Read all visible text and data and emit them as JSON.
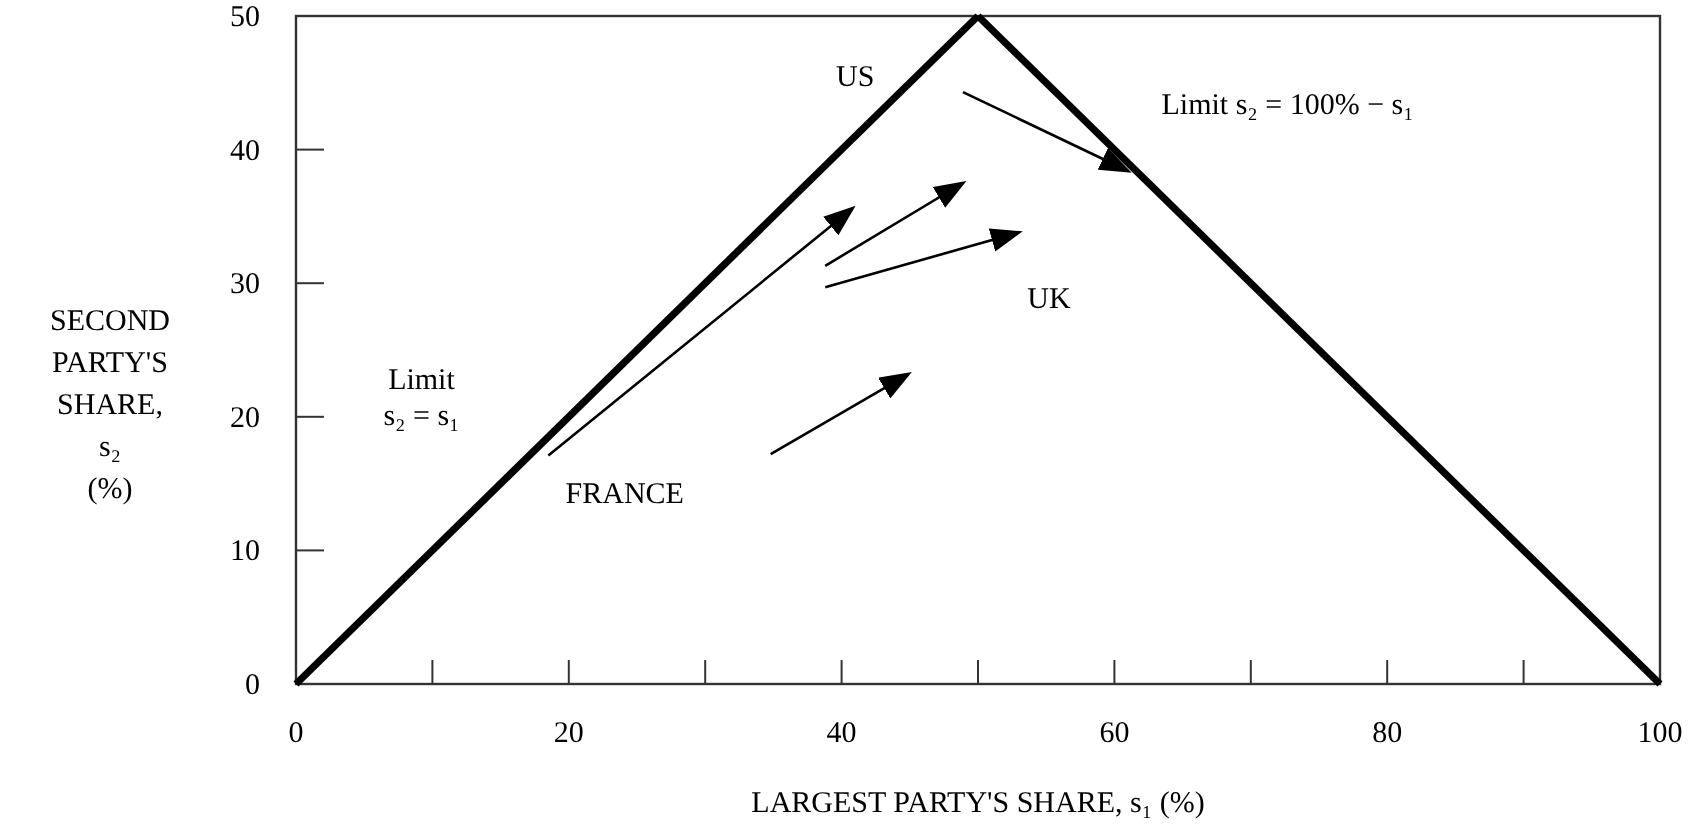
{
  "chart_data": {
    "type": "line",
    "xlabel": "LARGEST PARTY'S SHARE,  s₁ (%)",
    "ylabel": "SECOND\nPARTY'S\nSHARE,\ns₂\n(%)",
    "xlim": [
      0,
      100
    ],
    "ylim": [
      0,
      50
    ],
    "xticks": [
      0,
      {
        "value": 10,
        "label": null
      },
      20,
      {
        "value": 30,
        "label": null
      },
      40,
      {
        "value": 50,
        "label": null
      },
      60,
      {
        "value": 70,
        "label": null
      },
      80,
      {
        "value": 90,
        "label": null
      },
      100
    ],
    "yticks": [
      0,
      10,
      20,
      30,
      40,
      50
    ],
    "series": [
      {
        "color": "#000000",
        "x": [
          0,
          50
        ],
        "values": [
          0,
          50
        ]
      },
      {
        "color": "#000000",
        "x": [
          50,
          100
        ],
        "values": [
          50,
          0
        ]
      },
      {
        "color": "#000000",
        "x": [
          18.5,
          40.8
        ],
        "values": [
          17.1,
          35.6
        ]
      },
      {
        "color": "#000000",
        "x": [
          38.8,
          48.9
        ],
        "values": [
          31.3,
          37.5
        ]
      },
      {
        "color": "#000000",
        "x": [
          38.8,
          53.0
        ],
        "values": [
          29.7,
          33.8
        ]
      },
      {
        "color": "#000000",
        "x": [
          34.8,
          44.9
        ],
        "values": [
          17.2,
          23.2
        ]
      },
      {
        "color": "#000000",
        "x": [
          48.9,
          61.0
        ],
        "values": [
          44.3,
          38.4
        ]
      }
    ],
    "annotations": [
      "US",
      "UK",
      "FRANCE",
      "Limit\ns₂ = s₁",
      "Limit s₂ = 100% − s₁"
    ]
  }
}
